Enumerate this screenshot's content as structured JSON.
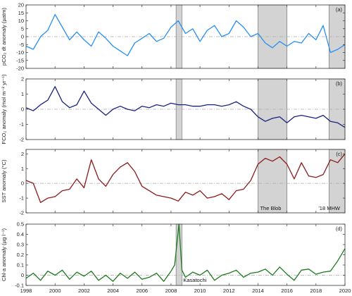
{
  "x_axis": {
    "xlim": [
      1998,
      2020
    ],
    "ticks": [
      "1998",
      "2000",
      "2002",
      "2004",
      "2006",
      "2008",
      "2010",
      "2012",
      "2014",
      "2016",
      "2018",
      "2020"
    ]
  },
  "events": {
    "kasatochi": {
      "label": "Kasatochi",
      "span": [
        2008.35,
        2008.75
      ]
    },
    "blob": {
      "label": "The Blob",
      "span": [
        2014.0,
        2016.0
      ]
    },
    "mhw": {
      "label": "'18 MHW",
      "span": [
        2018.9,
        2020.0
      ]
    }
  },
  "chart_data": [
    {
      "type": "line",
      "tag": "(a)",
      "ylabel": "pCO₂ dt anomaly (µatm)",
      "ylim": [
        -20,
        20
      ],
      "yticks": [
        -20,
        -15,
        -10,
        -5,
        0,
        5,
        10,
        15,
        20
      ],
      "color": "#2a8ff0",
      "shaded": [
        "kasatochi",
        "blob",
        "mhw"
      ],
      "x": [
        1998.0,
        1998.5,
        1999.0,
        1999.5,
        2000.0,
        2000.5,
        2001.0,
        2001.5,
        2002.0,
        2002.5,
        2003.0,
        2003.5,
        2004.0,
        2004.5,
        2005.0,
        2005.5,
        2006.0,
        2006.5,
        2007.0,
        2007.5,
        2008.0,
        2008.5,
        2009.0,
        2009.5,
        2010.0,
        2010.5,
        2011.0,
        2011.5,
        2012.0,
        2012.5,
        2013.0,
        2013.5,
        2014.0,
        2014.5,
        2015.0,
        2015.5,
        2016.0,
        2016.5,
        2017.0,
        2017.5,
        2018.0,
        2018.5,
        2019.0,
        2019.5,
        2020.0
      ],
      "values": [
        -6,
        -8,
        0,
        4,
        14,
        6,
        -2,
        3,
        -2,
        -6,
        3,
        -1,
        -6,
        -9,
        -12,
        -4,
        -1,
        2,
        -3,
        -1,
        6,
        10,
        2,
        5,
        -3,
        4,
        7,
        0,
        2,
        10,
        6,
        0,
        2,
        -4,
        -7,
        -3,
        -6,
        -3,
        -4,
        2,
        -2,
        7,
        -10,
        -8,
        -5
      ]
    },
    {
      "type": "line",
      "tag": "(b)",
      "ylabel": "FCO₂ anomaly (mol m⁻² yr⁻¹)",
      "ylim": [
        -2,
        2
      ],
      "yticks": [
        -2,
        -1,
        0,
        1,
        2
      ],
      "color": "#1a237e",
      "shaded": [
        "kasatochi",
        "blob",
        "mhw"
      ],
      "x": [
        1998.0,
        1998.5,
        1999.0,
        1999.5,
        2000.0,
        2000.5,
        2001.0,
        2001.5,
        2002.0,
        2002.5,
        2003.0,
        2003.5,
        2004.0,
        2004.5,
        2005.0,
        2005.5,
        2006.0,
        2006.5,
        2007.0,
        2007.5,
        2008.0,
        2008.5,
        2009.0,
        2009.5,
        2010.0,
        2010.5,
        2011.0,
        2011.5,
        2012.0,
        2012.5,
        2013.0,
        2013.5,
        2014.0,
        2014.5,
        2015.0,
        2015.5,
        2016.0,
        2016.5,
        2017.0,
        2017.5,
        2018.0,
        2018.5,
        2019.0,
        2019.5,
        2020.0
      ],
      "values": [
        0.1,
        -0.1,
        0.3,
        0.6,
        1.5,
        0.5,
        0.1,
        0.3,
        1.2,
        0.4,
        0.0,
        -0.4,
        0.0,
        0.2,
        0.0,
        -0.1,
        0.2,
        0.1,
        0.3,
        0.2,
        0.4,
        0.3,
        0.3,
        0.2,
        0.2,
        0.3,
        0.3,
        0.2,
        0.3,
        0.5,
        0.2,
        0.0,
        -0.5,
        -0.8,
        -0.6,
        -0.5,
        -0.9,
        -0.5,
        -0.4,
        -0.5,
        -0.6,
        -0.4,
        -0.8,
        -0.9,
        -1.2
      ]
    },
    {
      "type": "line",
      "tag": "(c)",
      "ylabel": "SST anomaly (°C)",
      "ylim": [
        -2,
        2.3
      ],
      "yticks": [
        -2,
        -1,
        0,
        1,
        2
      ],
      "color": "#8b1a1a",
      "shaded": [
        "blob",
        "mhw"
      ],
      "x": [
        1998.0,
        1998.5,
        1999.0,
        1999.5,
        2000.0,
        2000.5,
        2001.0,
        2001.5,
        2002.0,
        2002.5,
        2003.0,
        2003.5,
        2004.0,
        2004.5,
        2005.0,
        2005.5,
        2006.0,
        2006.5,
        2007.0,
        2007.5,
        2008.0,
        2008.5,
        2009.0,
        2009.5,
        2010.0,
        2010.5,
        2011.0,
        2011.5,
        2012.0,
        2012.5,
        2013.0,
        2013.5,
        2014.0,
        2014.5,
        2015.0,
        2015.5,
        2016.0,
        2016.5,
        2017.0,
        2017.5,
        2018.0,
        2018.5,
        2019.0,
        2019.5,
        2020.0
      ],
      "values": [
        0.2,
        0.0,
        -1.3,
        -1.0,
        -0.9,
        -0.5,
        -0.4,
        0.3,
        -0.3,
        1.6,
        0.3,
        -0.2,
        0.6,
        1.1,
        1.4,
        0.8,
        -0.2,
        -0.5,
        -0.8,
        -0.9,
        -1.0,
        -1.2,
        -0.6,
        -0.8,
        -0.5,
        -1.0,
        -0.9,
        -0.7,
        -1.1,
        -0.5,
        -0.4,
        0.2,
        1.3,
        1.7,
        1.5,
        1.8,
        1.3,
        0.3,
        1.4,
        0.5,
        0.4,
        0.6,
        1.6,
        1.4,
        2.0
      ]
    },
    {
      "type": "line",
      "tag": "(d)",
      "ylabel": "Chl-a anomaly (µg l⁻¹)",
      "ylim": [
        -0.1,
        0.5
      ],
      "yticks": [
        -0.1,
        0,
        0.1,
        0.2,
        0.3,
        0.4,
        0.5
      ],
      "color": "#1e7a1e",
      "shaded": [
        "kasatochi"
      ],
      "x": [
        1998.0,
        1998.5,
        1999.0,
        1999.5,
        2000.0,
        2000.5,
        2001.0,
        2001.5,
        2002.0,
        2002.5,
        2003.0,
        2003.5,
        2004.0,
        2004.5,
        2005.0,
        2005.5,
        2006.0,
        2006.5,
        2007.0,
        2007.5,
        2008.0,
        2008.25,
        2008.55,
        2008.75,
        2009.0,
        2009.5,
        2010.0,
        2010.5,
        2011.0,
        2011.5,
        2012.0,
        2012.5,
        2013.0,
        2013.5,
        2014.0,
        2014.5,
        2015.0,
        2015.5,
        2016.0,
        2016.5,
        2017.0,
        2017.5,
        2018.0,
        2018.5,
        2019.0,
        2019.5,
        2020.0
      ],
      "values": [
        -0.03,
        0.02,
        -0.05,
        0.04,
        0.0,
        0.05,
        -0.04,
        0.03,
        -0.01,
        0.04,
        -0.05,
        0.0,
        -0.06,
        0.02,
        -0.03,
        0.03,
        -0.04,
        -0.02,
        0.02,
        -0.06,
        0.04,
        0.1,
        0.5,
        0.05,
        -0.02,
        0.03,
        0.0,
        0.05,
        -0.05,
        0.0,
        0.02,
        0.05,
        -0.02,
        0.02,
        0.03,
        0.06,
        0.0,
        0.08,
        0.01,
        -0.05,
        0.05,
        0.06,
        0.01,
        0.03,
        0.04,
        0.14,
        0.26
      ]
    }
  ]
}
